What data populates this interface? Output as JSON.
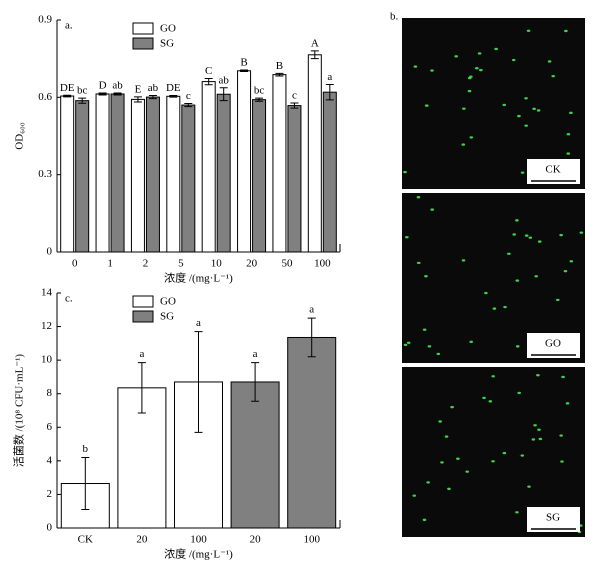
{
  "chart_data": [
    {
      "type": "grouped_bar",
      "panel_label": "a.",
      "y_label": "OD₆₀₀",
      "x_label": "浓度 /(mg·L⁻¹)",
      "categories": [
        "0",
        "1",
        "2",
        "5",
        "10",
        "20",
        "50",
        "100"
      ],
      "series": [
        {
          "name": "GO",
          "color": "#ffffff",
          "values": [
            0.605,
            0.613,
            0.592,
            0.604,
            0.661,
            0.703,
            0.688,
            0.765
          ],
          "errors": [
            0.003,
            0.004,
            0.01,
            0.003,
            0.012,
            0.003,
            0.005,
            0.015
          ],
          "letters": [
            "DE",
            "D",
            "E",
            "DE",
            "C",
            "B",
            "B",
            "A"
          ]
        },
        {
          "name": "SG",
          "color": "#808080",
          "values": [
            0.587,
            0.613,
            0.601,
            0.57,
            0.612,
            0.591,
            0.568,
            0.62
          ],
          "errors": [
            0.01,
            0.004,
            0.006,
            0.006,
            0.025,
            0.006,
            0.01,
            0.03
          ],
          "letters": [
            "bc",
            "ab",
            "ab",
            "c",
            "ab",
            "bc",
            "c",
            "a"
          ]
        }
      ],
      "ylim": [
        0,
        0.9
      ],
      "yticks": [
        0,
        0.3,
        0.6,
        0.9
      ],
      "legend": "top-left"
    },
    {
      "type": "bar",
      "panel_label": "c.",
      "y_label": "活菌数 /(10⁸ CFU·mL⁻¹)",
      "x_label": "浓度 /(mg·L⁻¹)",
      "categories": [
        "CK",
        "20",
        "100",
        "20",
        "100"
      ],
      "values": [
        2.65,
        8.35,
        8.7,
        8.7,
        11.35
      ],
      "errors": [
        1.55,
        1.5,
        3.0,
        1.15,
        1.15
      ],
      "letters": [
        "b",
        "a",
        "a",
        "a",
        "a"
      ],
      "colors": [
        "#ffffff",
        "#ffffff",
        "#ffffff",
        "#808080",
        "#808080"
      ],
      "legend_entries": [
        {
          "name": "GO",
          "color": "#ffffff"
        },
        {
          "name": "SG",
          "color": "#808080"
        }
      ],
      "ylim": [
        0,
        14
      ],
      "yticks": [
        0,
        2,
        4,
        6,
        8,
        10,
        12,
        14
      ],
      "legend": "top-left"
    }
  ],
  "images": {
    "panel_label": "b.",
    "panels": [
      "CK",
      "GO",
      "SG"
    ]
  }
}
